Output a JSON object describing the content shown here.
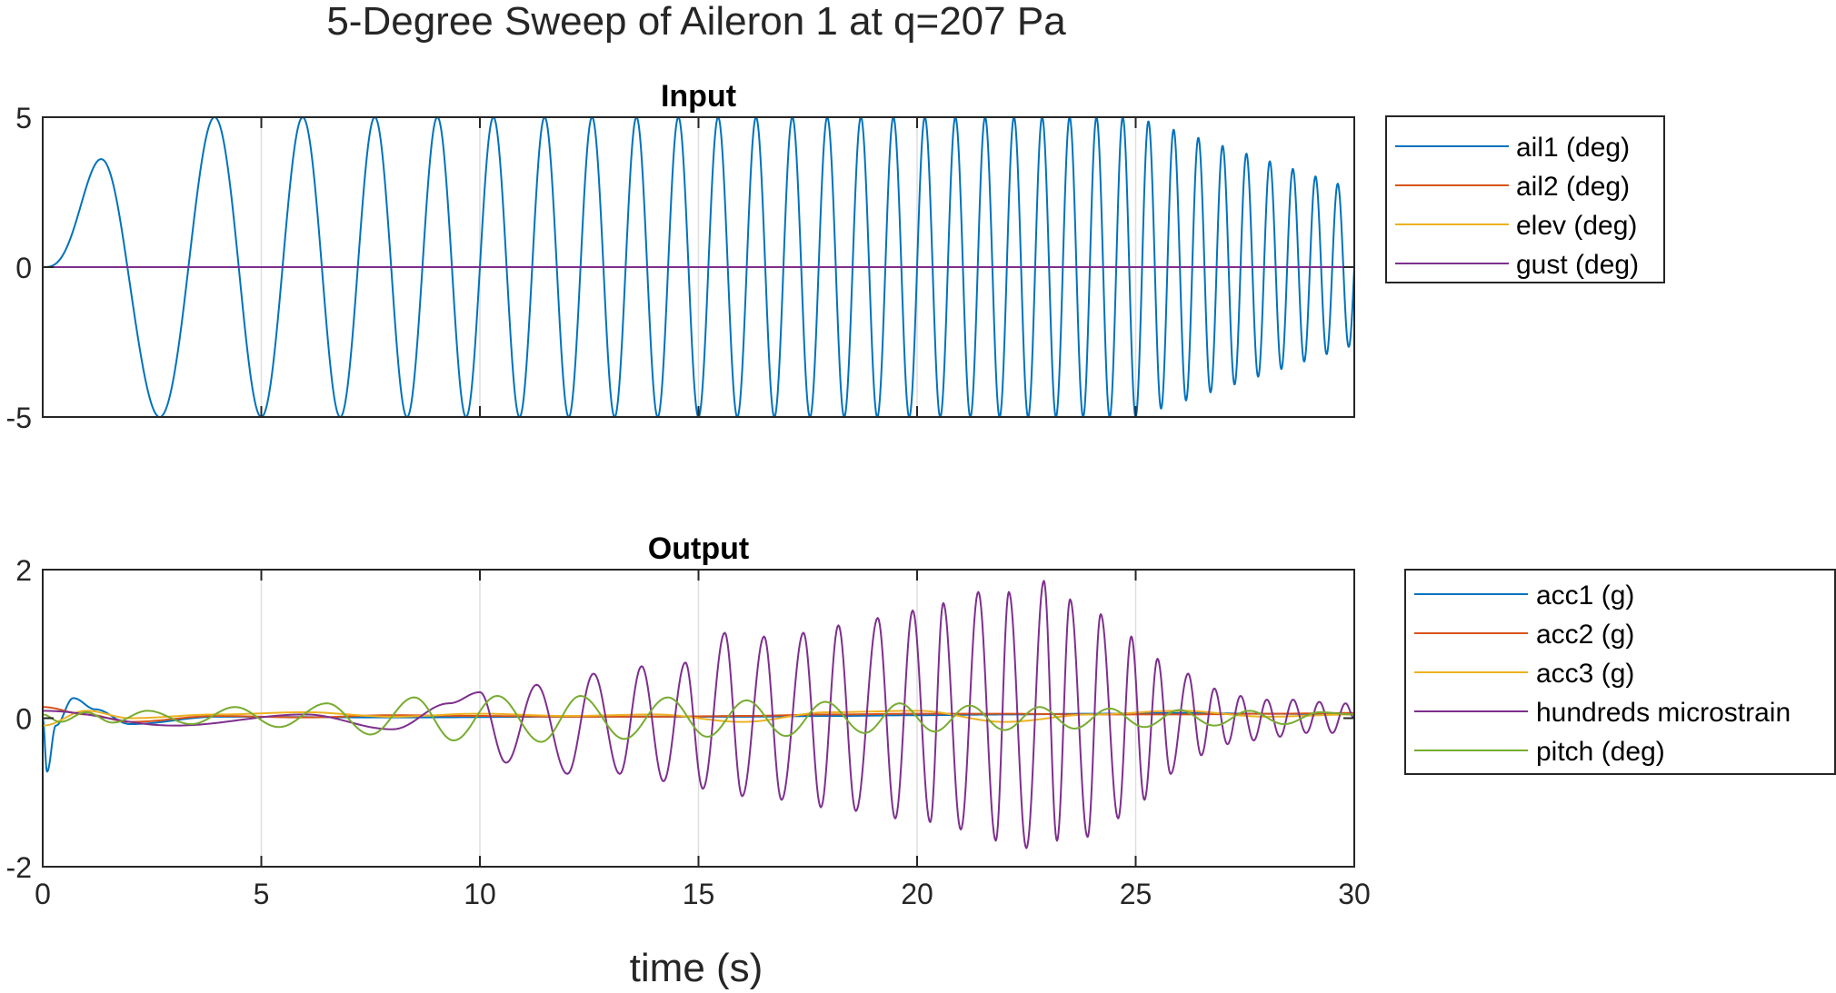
{
  "figure": {
    "suptitle": "5-Degree Sweep of Aileron 1 at q=207 Pa",
    "xlabel": "time (s)"
  },
  "chart_data": [
    {
      "type": "line",
      "title": "Input",
      "xlabel": "time (s)",
      "ylabel": "",
      "xlim": [
        0,
        30
      ],
      "ylim": [
        -5,
        5
      ],
      "x_ticks": [
        0,
        5,
        10,
        15,
        20,
        25,
        30
      ],
      "y_ticks": [
        -5,
        0,
        5
      ],
      "grid": "x",
      "legend_position": "outside-right-top",
      "sweep": {
        "signal": "chirp",
        "start_frequency_hz": 0.2,
        "end_frequency_hz": 2.0,
        "duration_s": 30,
        "amplitude_deg": 5
      },
      "series": [
        {
          "name": "ail1 (deg)",
          "color": "#0072BD",
          "x": [
            0,
            1.89,
            3.54,
            5.0,
            6.07,
            7.02,
            7.88,
            8.68,
            9.44,
            10.16,
            10.84,
            11.48,
            12.1,
            12.7,
            13.27,
            13.82,
            14.35,
            14.86,
            15.36,
            15.84,
            16.31,
            16.77,
            17.21,
            17.64,
            18.07,
            18.48,
            18.88,
            19.27,
            19.66,
            20.04,
            20.41,
            20.77,
            21.13,
            21.48,
            21.82,
            22.16,
            22.49,
            22.82,
            23.14,
            23.46,
            23.77,
            24.07,
            24.37,
            24.67,
            24.96,
            25.25,
            25.53,
            25.81,
            26.09,
            26.36,
            26.63,
            26.89,
            27.15,
            27.41,
            27.66,
            27.91,
            28.16,
            28.4,
            28.64,
            28.88,
            29.11,
            29.34,
            29.57,
            29.8,
            30.0
          ],
          "y": [
            0,
            3.8,
            -5,
            5,
            -5,
            5,
            -5,
            5,
            -5,
            5,
            -5,
            5,
            -5,
            5,
            -5,
            5,
            -5,
            5,
            -5,
            5,
            -5,
            5,
            -5,
            5,
            -5,
            5,
            -5,
            5,
            -5,
            5,
            -5,
            5,
            -5,
            5,
            -5,
            5,
            -5,
            5,
            -5,
            5,
            -5,
            5,
            -5,
            5,
            -5,
            4.8,
            -4.7,
            4.6,
            -4.4,
            4.3,
            -4.2,
            4.1,
            -4.0,
            3.9,
            -3.8,
            3.7,
            -3.5,
            3.4,
            -3.3,
            3.2,
            -3.1,
            2.9,
            -2.8,
            2.6,
            0
          ]
        },
        {
          "name": "ail2 (deg)",
          "color": "#D95319",
          "x": [
            0,
            30
          ],
          "y": [
            0,
            0
          ]
        },
        {
          "name": "elev (deg)",
          "color": "#EDB120",
          "x": [
            0,
            30
          ],
          "y": [
            0,
            0
          ]
        },
        {
          "name": "gust (deg)",
          "color": "#7E2F8E",
          "x": [
            0,
            30
          ],
          "y": [
            0,
            0
          ]
        }
      ]
    },
    {
      "type": "line",
      "title": "Output",
      "xlabel": "time (s)",
      "ylabel": "",
      "xlim": [
        0,
        30
      ],
      "ylim": [
        -2,
        2
      ],
      "x_ticks": [
        0,
        5,
        10,
        15,
        20,
        25,
        30
      ],
      "y_ticks": [
        -2,
        0,
        2
      ],
      "grid": "x",
      "legend_position": "outside-right-top",
      "series": [
        {
          "name": "acc1 (g)",
          "color": "#0072BD",
          "x": [
            0,
            0.1,
            0.3,
            0.7,
            1.2,
            2,
            4,
            8,
            12,
            16,
            18,
            20,
            22,
            24,
            26,
            28,
            30
          ],
          "y": [
            0,
            -0.72,
            -0.1,
            0.27,
            0.12,
            -0.08,
            0.02,
            0.01,
            0.02,
            0.02,
            0.03,
            0.04,
            0.05,
            0.06,
            0.07,
            0.06,
            0.05
          ]
        },
        {
          "name": "acc2 (g)",
          "color": "#D95319",
          "x": [
            0,
            1,
            2,
            4,
            6,
            8,
            10,
            12,
            14,
            16,
            18,
            20,
            22,
            24,
            26,
            28,
            30
          ],
          "y": [
            0.15,
            0.05,
            -0.05,
            0.03,
            0.01,
            0.04,
            0.03,
            0.02,
            0.02,
            0.03,
            0.05,
            0.06,
            0.06,
            0.05,
            0.05,
            0.06,
            0.07
          ]
        },
        {
          "name": "acc3 (g)",
          "color": "#EDB120",
          "x": [
            0,
            1,
            2,
            4,
            6,
            8,
            10,
            12,
            14,
            16,
            18,
            20,
            22,
            24,
            26,
            28,
            30
          ],
          "y": [
            -0.1,
            0.1,
            0.0,
            0.05,
            0.08,
            0.02,
            0.06,
            0.03,
            0.05,
            -0.05,
            0.08,
            0.1,
            -0.05,
            0.05,
            0.1,
            0.02,
            0.05
          ]
        },
        {
          "name": "hundreds microstrain",
          "color": "#7E2F8E",
          "x": [
            0,
            3,
            6,
            8,
            9.3,
            10,
            10.6,
            11.3,
            12,
            12.6,
            13.2,
            13.7,
            14.2,
            14.7,
            15.1,
            15.6,
            16.0,
            16.5,
            16.9,
            17.4,
            17.8,
            18.2,
            18.6,
            19.1,
            19.5,
            19.9,
            20.3,
            20.6,
            21.0,
            21.4,
            21.8,
            22.1,
            22.5,
            22.9,
            23.2,
            23.5,
            23.9,
            24.2,
            24.6,
            24.9,
            25.2,
            25.5,
            25.8,
            26.2,
            26.5,
            26.8,
            27.1,
            27.4,
            27.7,
            28.0,
            28.3,
            28.6,
            28.9,
            29.2,
            29.5,
            29.8,
            30.0
          ],
          "y": [
            0.1,
            -0.1,
            0.05,
            -0.15,
            0.2,
            0.35,
            -0.6,
            0.45,
            -0.75,
            0.6,
            -0.75,
            0.7,
            -0.85,
            0.75,
            -0.95,
            1.15,
            -1.05,
            1.1,
            -1.1,
            1.15,
            -1.2,
            1.25,
            -1.25,
            1.35,
            -1.35,
            1.45,
            -1.4,
            1.55,
            -1.5,
            1.7,
            -1.65,
            1.7,
            -1.75,
            1.85,
            -1.65,
            1.6,
            -1.6,
            1.4,
            -1.35,
            1.1,
            -1.1,
            0.8,
            -0.75,
            0.6,
            -0.5,
            0.4,
            -0.35,
            0.3,
            -0.3,
            0.25,
            -0.25,
            0.25,
            -0.2,
            0.22,
            -0.2,
            0.2,
            0.0
          ]
        },
        {
          "name": "pitch (deg)",
          "color": "#77AC30",
          "x": [
            0,
            0.4,
            1,
            1.6,
            2.4,
            3.4,
            4.4,
            5.4,
            6.5,
            7.5,
            8.5,
            9.4,
            10.4,
            11.4,
            12.3,
            13.3,
            14.3,
            15.2,
            16.1,
            17.0,
            17.9,
            18.8,
            19.6,
            20.4,
            21.2,
            22.0,
            22.8,
            23.6,
            24.4,
            25.2,
            26.0,
            26.8,
            27.6,
            28.4,
            29.2,
            30.0
          ],
          "y": [
            0.05,
            -0.05,
            0.08,
            -0.06,
            0.1,
            -0.08,
            0.15,
            -0.12,
            0.2,
            -0.22,
            0.28,
            -0.3,
            0.3,
            -0.32,
            0.3,
            -0.28,
            0.28,
            -0.25,
            0.24,
            -0.24,
            0.22,
            -0.2,
            0.2,
            -0.18,
            0.17,
            -0.16,
            0.15,
            -0.14,
            0.13,
            -0.12,
            0.11,
            -0.1,
            0.1,
            -0.08,
            0.08,
            0.05
          ]
        }
      ]
    }
  ]
}
